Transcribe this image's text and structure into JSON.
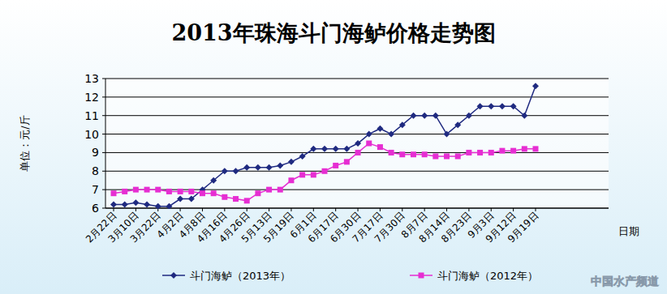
{
  "chart_data": {
    "type": "line",
    "title": "2013年珠海斗门海鲈价格走势图",
    "y_label": "单位：元/斤",
    "x_label": "日期",
    "source": "中国水产频道",
    "categories": [
      "2月22日",
      null,
      "3月10日",
      null,
      "3月22日",
      null,
      "4月2日",
      null,
      "4月8日",
      null,
      "4月16日",
      null,
      "4月26日",
      null,
      "5月13日",
      null,
      "5月19日",
      null,
      "6月1日",
      null,
      "6月17日",
      null,
      "6月30日",
      null,
      "7月17日",
      null,
      "7月30日",
      null,
      "8月7日",
      null,
      "8月14日",
      null,
      "8月23日",
      null,
      "9月3日",
      null,
      "9月12日",
      null,
      "9月19日"
    ],
    "series": [
      {
        "name": "斗门海鲈（2013年）",
        "color": "#1f2a80",
        "marker": "diamond",
        "values": [
          6.2,
          6.2,
          6.3,
          6.2,
          6.1,
          6.1,
          6.5,
          6.5,
          7.0,
          7.5,
          8.0,
          8.0,
          8.2,
          8.2,
          8.2,
          8.3,
          8.5,
          8.8,
          9.2,
          9.2,
          9.2,
          9.2,
          9.5,
          10.0,
          10.3,
          10.0,
          10.5,
          11.0,
          11.0,
          11.0,
          10.0,
          10.5,
          11.0,
          11.5,
          11.5,
          11.5,
          11.5,
          11.0,
          12.6
        ]
      },
      {
        "name": "斗门海鲈（2012年）",
        "color": "#e62ed2",
        "marker": "square",
        "values": [
          6.8,
          6.9,
          7.0,
          7.0,
          7.0,
          6.9,
          6.9,
          6.9,
          6.8,
          6.8,
          6.6,
          6.5,
          6.4,
          6.8,
          7.0,
          7.0,
          7.5,
          7.8,
          7.8,
          8.0,
          8.3,
          8.5,
          9.0,
          9.5,
          9.3,
          9.0,
          8.9,
          8.9,
          8.9,
          8.8,
          8.8,
          8.8,
          9.0,
          9.0,
          9.0,
          9.1,
          9.1,
          9.2,
          9.2
        ]
      }
    ],
    "ylim": [
      6,
      13
    ],
    "yticks": [
      6,
      7,
      8,
      9,
      10,
      11,
      12,
      13
    ],
    "grid": true,
    "legend": "bottom"
  }
}
